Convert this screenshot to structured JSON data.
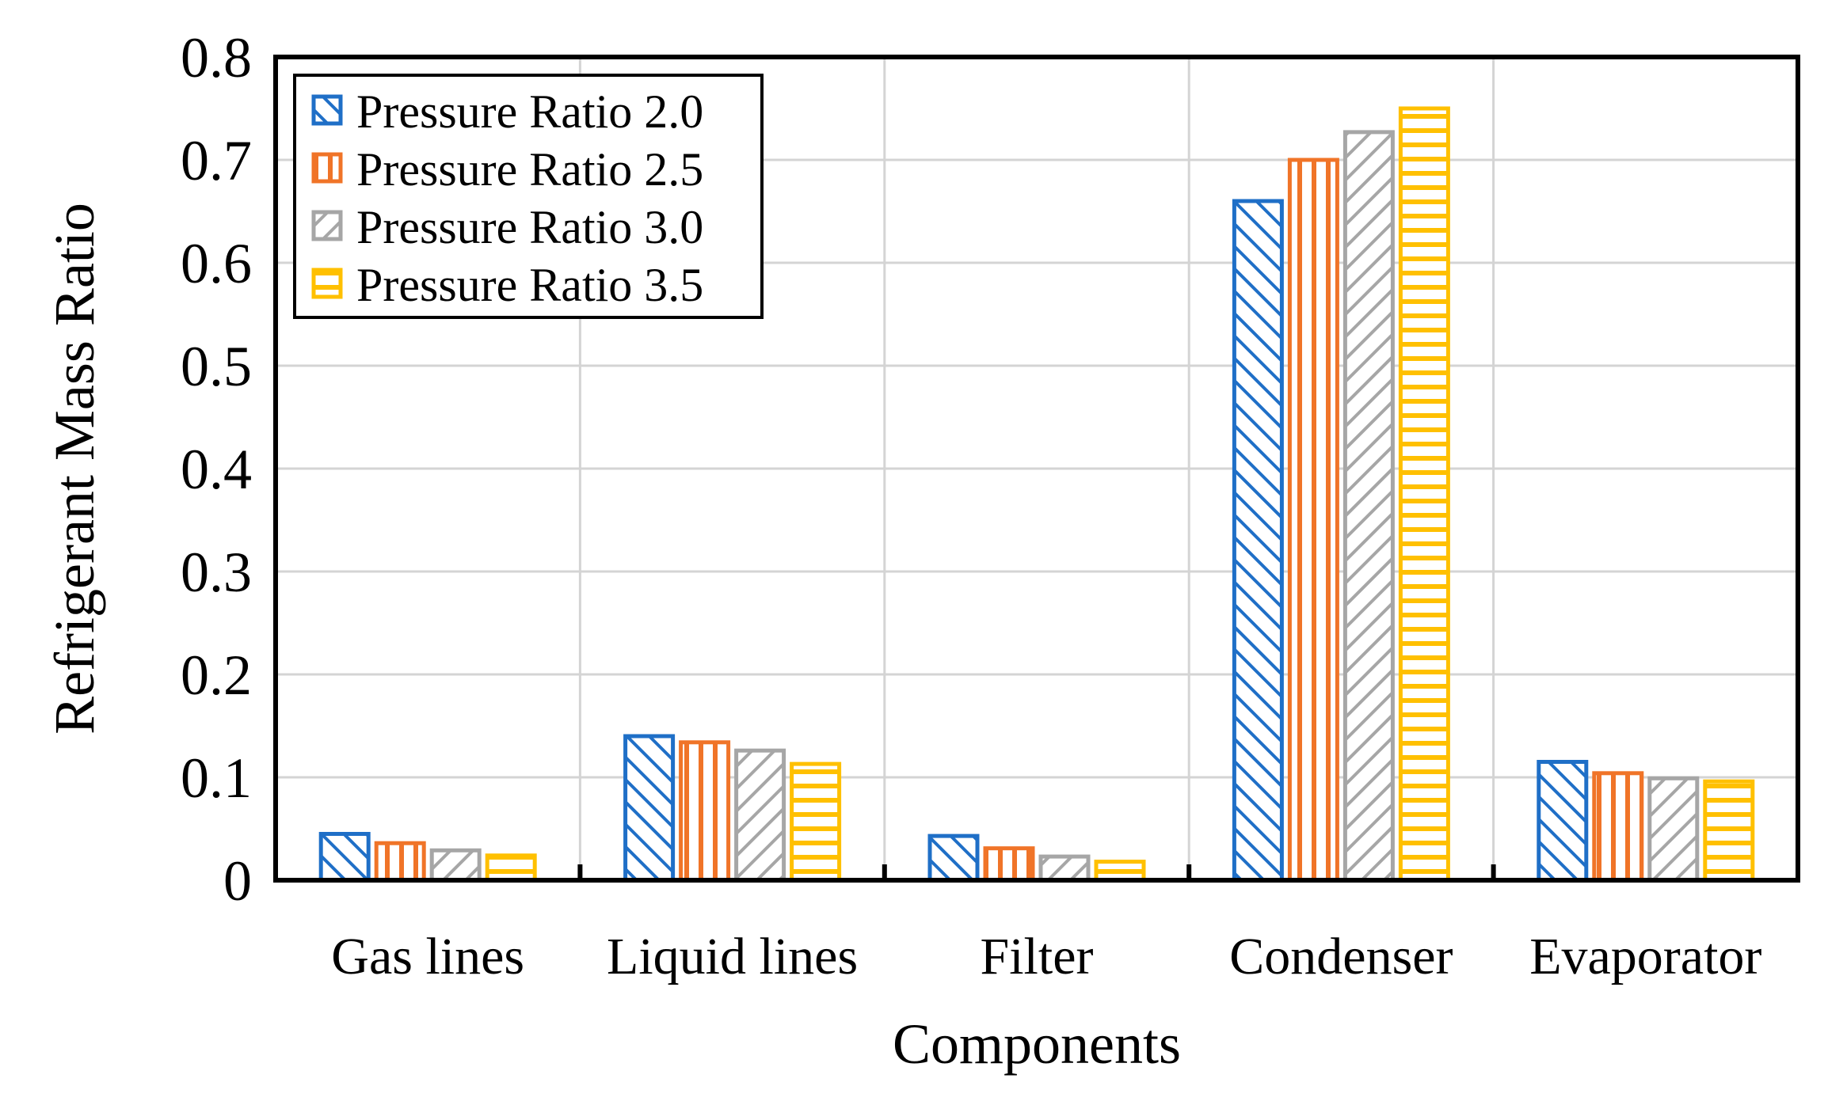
{
  "chart_data": {
    "type": "bar",
    "title": "",
    "xlabel": "Components",
    "ylabel": "Refrigerant Mass Ratio",
    "ylim": [
      0,
      0.8
    ],
    "yticks": [
      "0",
      "0.1",
      "0.2",
      "0.3",
      "0.4",
      "0.5",
      "0.6",
      "0.7",
      "0.8"
    ],
    "grid": true,
    "legend_position": "top-left",
    "categories": [
      "Gas lines",
      "Liquid lines",
      "Filter",
      "Condenser",
      "Evaporator"
    ],
    "series": [
      {
        "name": "Pressure Ratio 2.0",
        "color": "#1f6fc7",
        "pattern": "diagonal-back",
        "values": [
          0.045,
          0.14,
          0.043,
          0.66,
          0.115
        ]
      },
      {
        "name": "Pressure Ratio 2.5",
        "color": "#f07428",
        "pattern": "vertical",
        "values": [
          0.036,
          0.134,
          0.031,
          0.7,
          0.104
        ]
      },
      {
        "name": "Pressure Ratio 3.0",
        "color": "#a6a6a6",
        "pattern": "diagonal-forward",
        "values": [
          0.029,
          0.126,
          0.023,
          0.727,
          0.099
        ]
      },
      {
        "name": "Pressure Ratio 3.5",
        "color": "#ffc000",
        "pattern": "horizontal",
        "values": [
          0.024,
          0.113,
          0.018,
          0.75,
          0.096
        ]
      }
    ]
  }
}
